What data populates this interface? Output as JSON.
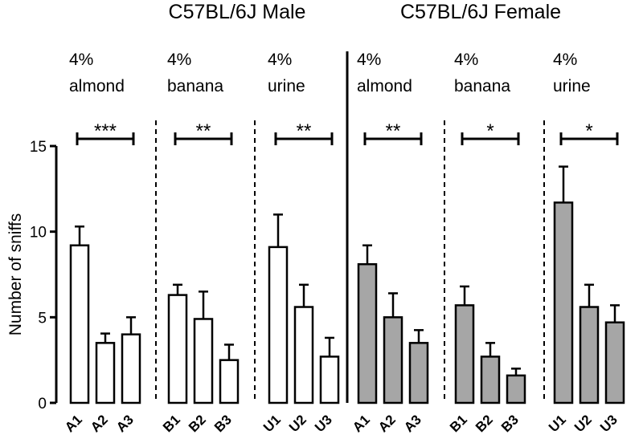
{
  "chart_data": {
    "type": "bar",
    "ylabel": "Number of sniffs",
    "ylim": [
      0,
      15
    ],
    "yticks": [
      "0",
      "5",
      "10",
      "15"
    ],
    "groups": [
      {
        "title": "C57BL/6J  Male",
        "fill": "#ffffff",
        "panels": [
          {
            "label_line1": "4%",
            "label_line2": "almond",
            "significance": "***",
            "categories": [
              "A1",
              "A2",
              "A3"
            ],
            "values": [
              9.2,
              3.5,
              4.0
            ],
            "errors": [
              1.1,
              0.55,
              1.0
            ]
          },
          {
            "label_line1": "4%",
            "label_line2": "banana",
            "significance": "**",
            "categories": [
              "B1",
              "B2",
              "B3"
            ],
            "values": [
              6.3,
              4.9,
              2.5
            ],
            "errors": [
              0.6,
              1.6,
              0.9
            ]
          },
          {
            "label_line1": "4%",
            "label_line2": "urine",
            "significance": "**",
            "categories": [
              "U1",
              "U2",
              "U3"
            ],
            "values": [
              9.1,
              5.6,
              2.7
            ],
            "errors": [
              1.9,
              1.3,
              1.1
            ]
          }
        ]
      },
      {
        "title": "C57BL/6J Female",
        "fill": "#a6a6a6",
        "panels": [
          {
            "label_line1": "4%",
            "label_line2": "almond",
            "significance": "**",
            "categories": [
              "A1",
              "A2",
              "A3"
            ],
            "values": [
              8.1,
              5.0,
              3.5
            ],
            "errors": [
              1.1,
              1.4,
              0.75
            ]
          },
          {
            "label_line1": "4%",
            "label_line2": "banana",
            "significance": "*",
            "categories": [
              "B1",
              "B2",
              "B3"
            ],
            "values": [
              5.7,
              2.7,
              1.6
            ],
            "errors": [
              1.1,
              0.8,
              0.4
            ]
          },
          {
            "label_line1": "4%",
            "label_line2": "urine",
            "significance": "*",
            "categories": [
              "U1",
              "U2",
              "U3"
            ],
            "values": [
              11.7,
              5.6,
              4.7
            ],
            "errors": [
              2.1,
              1.3,
              1.0
            ]
          }
        ]
      }
    ]
  }
}
